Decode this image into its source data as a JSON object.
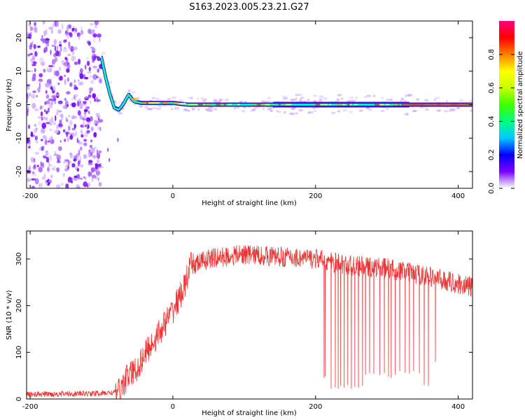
{
  "title": "S163.2023.005.23.21.G27",
  "chart_data": [
    {
      "type": "heatmap",
      "xlabel": "Height of straight line (km)",
      "ylabel": "Frequency (Hz)",
      "xlim": [
        -205,
        420
      ],
      "ylim": [
        -25,
        25
      ],
      "xticks": [
        -200,
        0,
        200,
        400
      ],
      "yticks": [
        -20,
        -10,
        0,
        10,
        20
      ],
      "colorbar": {
        "label": "Normalized spectral amplitude",
        "range": [
          0,
          1
        ],
        "ticks": [
          0.0,
          0.2,
          0.4,
          0.6,
          0.8
        ],
        "tick_labels": [
          "0.0",
          "0.2",
          "0.4",
          "0.6",
          "0.8"
        ],
        "colors": [
          "#ffffff",
          "#c9a0ff",
          "#7a00ff",
          "#0000ff",
          "#00c8ff",
          "#00ff80",
          "#a0ff00",
          "#ffff00",
          "#ff8000",
          "#ff0000",
          "#ff0080"
        ]
      },
      "noise_region_x": [
        -205,
        -100
      ],
      "band_center_hz": 0,
      "trace_points": [
        {
          "x": -100,
          "y": 14
        },
        {
          "x": -94,
          "y": 8
        },
        {
          "x": -88,
          "y": 3
        },
        {
          "x": -82,
          "y": -1
        },
        {
          "x": -76,
          "y": -1.5
        },
        {
          "x": -70,
          "y": 0
        },
        {
          "x": -62,
          "y": 3
        },
        {
          "x": -55,
          "y": 1
        },
        {
          "x": -45,
          "y": 0.5
        },
        {
          "x": -30,
          "y": 0.5
        },
        {
          "x": 0,
          "y": 0.5
        },
        {
          "x": 20,
          "y": 0
        },
        {
          "x": 420,
          "y": 0
        }
      ]
    },
    {
      "type": "line",
      "xlabel": "Height of straight line (km)",
      "ylabel": "SNR (10 * v/v)",
      "xlim": [
        -205,
        420
      ],
      "ylim": [
        0,
        360
      ],
      "xticks": [
        -200,
        0,
        200,
        400
      ],
      "yticks": [
        0,
        100,
        200,
        300
      ],
      "color": "#ee3333",
      "envelope": [
        {
          "x": -205,
          "y": 10
        },
        {
          "x": -100,
          "y": 12
        },
        {
          "x": -75,
          "y": 15
        },
        {
          "x": -65,
          "y": 45
        },
        {
          "x": -50,
          "y": 65
        },
        {
          "x": -40,
          "y": 95
        },
        {
          "x": -20,
          "y": 140
        },
        {
          "x": 0,
          "y": 190
        },
        {
          "x": 15,
          "y": 235
        },
        {
          "x": 25,
          "y": 285
        },
        {
          "x": 50,
          "y": 300
        },
        {
          "x": 100,
          "y": 310
        },
        {
          "x": 150,
          "y": 305
        },
        {
          "x": 200,
          "y": 300
        },
        {
          "x": 250,
          "y": 285
        },
        {
          "x": 300,
          "y": 280
        },
        {
          "x": 350,
          "y": 265
        },
        {
          "x": 420,
          "y": 240
        }
      ],
      "dropouts": [
        {
          "x": 212,
          "y": 45
        },
        {
          "x": 214,
          "y": 48
        },
        {
          "x": 222,
          "y": 22
        },
        {
          "x": 228,
          "y": 25
        },
        {
          "x": 232,
          "y": 22
        },
        {
          "x": 236,
          "y": 28
        },
        {
          "x": 240,
          "y": 24
        },
        {
          "x": 245,
          "y": 30
        },
        {
          "x": 250,
          "y": 22
        },
        {
          "x": 255,
          "y": 26
        },
        {
          "x": 260,
          "y": 24
        },
        {
          "x": 266,
          "y": 28
        },
        {
          "x": 270,
          "y": 52
        },
        {
          "x": 276,
          "y": 55
        },
        {
          "x": 282,
          "y": 54
        },
        {
          "x": 290,
          "y": 52
        },
        {
          "x": 296,
          "y": 55
        },
        {
          "x": 302,
          "y": 48
        },
        {
          "x": 306,
          "y": 45
        },
        {
          "x": 312,
          "y": 52
        },
        {
          "x": 318,
          "y": 60
        },
        {
          "x": 326,
          "y": 56
        },
        {
          "x": 332,
          "y": 55
        },
        {
          "x": 338,
          "y": 60
        },
        {
          "x": 345,
          "y": 55
        },
        {
          "x": 352,
          "y": 30
        },
        {
          "x": 358,
          "y": 28
        },
        {
          "x": 368,
          "y": 80
        }
      ]
    }
  ]
}
